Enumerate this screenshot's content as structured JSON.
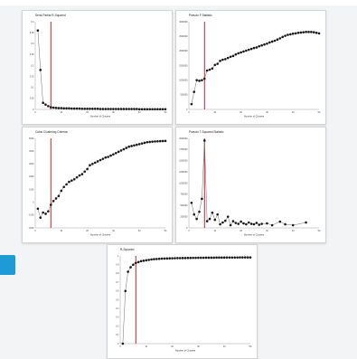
{
  "colors": {
    "point": "#1a1a1a",
    "line": "#6f6f6f",
    "cutoff": "#cc2222"
  },
  "chart_data": [
    {
      "type": "line",
      "title": "Semi-Partial R-Squared",
      "xlabel": "Number of Clusters",
      "ylabel": "",
      "xlim": [
        0,
        50
      ],
      "ylim": [
        0.0,
        0.4
      ],
      "xticks": [
        0,
        10,
        20,
        30,
        40,
        50
      ],
      "yticks": [
        0.0,
        0.05,
        0.1,
        0.15,
        0.2,
        0.25,
        0.3,
        0.35,
        0.4
      ],
      "cutoff_x": 6,
      "series": [
        {
          "x": [
            1,
            2,
            3,
            4,
            5,
            6,
            7,
            8,
            9,
            10,
            11,
            12,
            13,
            14,
            15,
            16,
            17,
            18,
            19,
            20,
            21,
            22,
            23,
            24,
            25,
            26,
            27,
            28,
            29,
            30,
            31,
            32,
            33,
            34,
            35,
            36,
            37,
            38,
            39,
            40,
            41,
            42,
            43,
            44,
            45,
            46,
            47,
            48,
            49,
            50
          ],
          "y": [
            0.36,
            0.18,
            0.03,
            0.022,
            0.015,
            0.01,
            0.008,
            0.007,
            0.006,
            0.006,
            0.005,
            0.005,
            0.005,
            0.004,
            0.004,
            0.004,
            0.004,
            0.003,
            0.003,
            0.003,
            0.003,
            0.003,
            0.003,
            0.003,
            0.002,
            0.002,
            0.002,
            0.002,
            0.002,
            0.002,
            0.002,
            0.002,
            0.002,
            0.002,
            0.002,
            0.002,
            0.002,
            0.002,
            0.002,
            0.001,
            0.001,
            0.001,
            0.001,
            0.001,
            0.001,
            0.001,
            0.001,
            0.001,
            0.001,
            0.001
          ]
        }
      ]
    },
    {
      "type": "line",
      "title": "Pseudo F Statistic",
      "xlabel": "Number of Clusters",
      "ylabel": "",
      "xlim": [
        0,
        50
      ],
      "ylim": [
        0,
        3000000
      ],
      "xticks": [
        0,
        10,
        20,
        30,
        40,
        50
      ],
      "yticks": [
        0,
        500000,
        1000000,
        1500000,
        2000000,
        2500000,
        3000000
      ],
      "cutoff_x": 6,
      "series": [
        {
          "x": [
            1,
            2,
            3,
            4,
            5,
            6,
            7,
            8,
            9,
            10,
            11,
            12,
            13,
            14,
            15,
            16,
            17,
            18,
            19,
            20,
            21,
            22,
            23,
            24,
            25,
            26,
            27,
            28,
            29,
            30,
            31,
            32,
            33,
            34,
            35,
            36,
            37,
            38,
            39,
            40,
            41,
            42,
            43,
            44,
            45,
            46,
            47,
            48,
            49,
            50
          ],
          "y": [
            180000,
            600000,
            1000000,
            980000,
            1000000,
            1050000,
            1330000,
            1360000,
            1400000,
            1520000,
            1560000,
            1660000,
            1700000,
            1720000,
            1760000,
            1800000,
            1830000,
            1880000,
            1920000,
            1950000,
            1980000,
            2010000,
            2040000,
            2070000,
            2100000,
            2120000,
            2160000,
            2190000,
            2220000,
            2250000,
            2290000,
            2320000,
            2350000,
            2390000,
            2430000,
            2480000,
            2520000,
            2550000,
            2570000,
            2590000,
            2600000,
            2620000,
            2630000,
            2640000,
            2650000,
            2650000,
            2650000,
            2640000,
            2620000,
            2600000
          ]
        }
      ]
    },
    {
      "type": "line",
      "title": "Cubic Clustering Criterion",
      "xlabel": "Number of Clusters",
      "ylabel": "",
      "xlim": [
        0,
        50
      ],
      "ylim": [
        -2000,
        5000
      ],
      "xticks": [
        0,
        10,
        20,
        30,
        40,
        50
      ],
      "yticks": [
        -2000,
        -1000,
        0,
        1000,
        2000,
        3000,
        4000,
        5000
      ],
      "cutoff_x": 6,
      "series": [
        {
          "x": [
            1,
            2,
            3,
            4,
            5,
            6,
            7,
            8,
            9,
            10,
            11,
            12,
            13,
            14,
            15,
            16,
            17,
            18,
            19,
            20,
            21,
            22,
            23,
            24,
            25,
            26,
            27,
            28,
            29,
            30,
            31,
            32,
            33,
            34,
            35,
            36,
            37,
            38,
            39,
            40,
            41,
            42,
            43,
            44,
            45,
            46,
            47,
            48,
            49,
            50
          ],
          "y": [
            -500,
            -1200,
            -800,
            -900,
            -700,
            -200,
            100,
            300,
            500,
            900,
            1200,
            1400,
            1600,
            1700,
            1800,
            1950,
            2100,
            2200,
            2400,
            2600,
            2900,
            3000,
            3100,
            3200,
            3300,
            3400,
            3500,
            3550,
            3650,
            3750,
            3850,
            3950,
            4050,
            4150,
            4250,
            4350,
            4400,
            4450,
            4500,
            4550,
            4600,
            4650,
            4700,
            4720,
            4740,
            4760,
            4770,
            4780,
            4790,
            4800
          ]
        }
      ]
    },
    {
      "type": "line",
      "title": "Pseudo T-Squared Statistic",
      "xlabel": "Number of Clusters",
      "ylabel": "",
      "xlim": [
        0,
        50
      ],
      "ylim": [
        0,
        2000000
      ],
      "xticks": [
        0,
        10,
        20,
        30,
        40,
        50
      ],
      "yticks": [
        0,
        250000,
        500000,
        750000,
        1000000,
        1250000,
        1500000,
        1750000,
        2000000
      ],
      "cutoff_x": 6,
      "series": [
        {
          "x": [
            1,
            2,
            3,
            4,
            5,
            6,
            7,
            8,
            9,
            10,
            11,
            12,
            13,
            14,
            15,
            16,
            17,
            18,
            19,
            20,
            21,
            22,
            23,
            24,
            25,
            26,
            27,
            28,
            30,
            32,
            35,
            37,
            40,
            45
          ],
          "y": [
            560000,
            300000,
            200000,
            360000,
            650000,
            1950000,
            150000,
            200000,
            340000,
            180000,
            300000,
            80000,
            120000,
            160000,
            250000,
            60000,
            150000,
            110000,
            90000,
            140000,
            100000,
            80000,
            120000,
            90000,
            80000,
            110000,
            70000,
            90000,
            100000,
            60000,
            140000,
            80000,
            60000,
            120000
          ]
        }
      ]
    },
    {
      "type": "line",
      "title": "R-Squared",
      "xlabel": "Number of Clusters",
      "ylabel": "",
      "xlim": [
        0,
        50
      ],
      "ylim": [
        0.0,
        1.0
      ],
      "xticks": [
        0,
        10,
        20,
        30,
        40,
        50
      ],
      "yticks": [
        0.0,
        0.1,
        0.2,
        0.3,
        0.4,
        0.5,
        0.6,
        0.7,
        0.8,
        0.9,
        1.0
      ],
      "cutoff_x": 6,
      "series": [
        {
          "x": [
            1,
            2,
            3,
            4,
            5,
            6,
            7,
            8,
            9,
            10,
            11,
            12,
            13,
            14,
            15,
            16,
            17,
            18,
            19,
            20,
            21,
            22,
            23,
            24,
            25,
            26,
            27,
            28,
            29,
            30,
            31,
            32,
            33,
            34,
            35,
            36,
            37,
            38,
            39,
            40,
            41,
            42,
            43,
            44,
            45,
            46,
            47,
            48,
            49,
            50
          ],
          "y": [
            0.0,
            0.6,
            0.82,
            0.87,
            0.9,
            0.92,
            0.93,
            0.94,
            0.945,
            0.95,
            0.955,
            0.96,
            0.963,
            0.965,
            0.967,
            0.969,
            0.97,
            0.971,
            0.972,
            0.973,
            0.974,
            0.975,
            0.975,
            0.976,
            0.976,
            0.977,
            0.977,
            0.978,
            0.978,
            0.979,
            0.979,
            0.979,
            0.98,
            0.98,
            0.98,
            0.98,
            0.981,
            0.981,
            0.981,
            0.981,
            0.982,
            0.982,
            0.982,
            0.982,
            0.982,
            0.983,
            0.983,
            0.983,
            0.983,
            0.983
          ]
        }
      ]
    }
  ]
}
